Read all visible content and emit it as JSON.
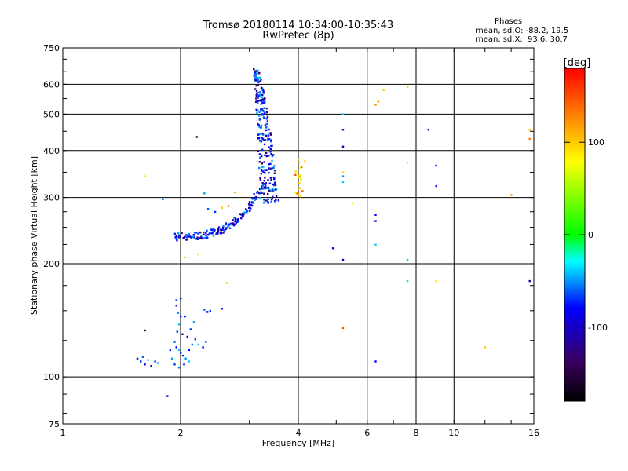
{
  "title_line1": "Tromsø 20180114 10:34:00-10:35:43",
  "title_line2": "RwPretec (8p)",
  "phase_header": "Phases",
  "phase_line1": "mean, sd,O: -88.2, 19.5",
  "phase_line2": "mean, sd,X:  93.6, 30.7",
  "chart_data": {
    "type": "scatter",
    "xlabel": "Frequency [MHz]",
    "ylabel": "Stationary phase Virtual Height [km]",
    "x_scale": "log",
    "y_scale": "log",
    "xlim": [
      1,
      16
    ],
    "ylim": [
      75,
      750
    ],
    "x_ticks": [
      1,
      2,
      4,
      6,
      8,
      10,
      16
    ],
    "y_ticks": [
      75,
      100,
      200,
      300,
      400,
      500,
      600,
      750
    ],
    "grid": true,
    "colorbar": {
      "label": "[deg]",
      "range": [
        -180,
        180
      ],
      "ticks": [
        100,
        0,
        -100
      ],
      "colors": [
        "#000000",
        "#3a0060",
        "#0000ff",
        "#00ffff",
        "#00ff00",
        "#ffff00",
        "#ff0000"
      ]
    },
    "points": [
      [
        1.55,
        112,
        -100
      ],
      [
        1.58,
        110,
        -95
      ],
      [
        1.6,
        113,
        -80
      ],
      [
        1.62,
        108,
        -110
      ],
      [
        1.65,
        111,
        -60
      ],
      [
        1.68,
        107,
        -100
      ],
      [
        1.72,
        110,
        -90
      ],
      [
        1.75,
        109,
        -70
      ],
      [
        1.62,
        133,
        -150
      ],
      [
        1.62,
        342,
        90
      ],
      [
        1.85,
        89,
        -110
      ],
      [
        1.8,
        297,
        -80
      ],
      [
        1.95,
        155,
        -100
      ],
      [
        1.95,
        160,
        -90
      ],
      [
        2.0,
        162,
        -110
      ],
      [
        1.97,
        148,
        -70
      ],
      [
        2.0,
        145,
        -100
      ],
      [
        1.98,
        138,
        -60
      ],
      [
        1.96,
        132,
        -90
      ],
      [
        2.02,
        130,
        -120
      ],
      [
        1.93,
        124,
        -80
      ],
      [
        1.95,
        120,
        -100
      ],
      [
        1.98,
        118,
        -60
      ],
      [
        2.0,
        116,
        -90
      ],
      [
        2.03,
        114,
        -110
      ],
      [
        2.06,
        112,
        -70
      ],
      [
        2.1,
        118,
        -100
      ],
      [
        2.14,
        122,
        -80
      ],
      [
        2.08,
        128,
        -110
      ],
      [
        2.12,
        134,
        -90
      ],
      [
        2.16,
        140,
        -70
      ],
      [
        2.05,
        145,
        -100
      ],
      [
        2.18,
        126,
        -90
      ],
      [
        2.22,
        122,
        -60
      ],
      [
        2.28,
        120,
        -100
      ],
      [
        2.32,
        124,
        -80
      ],
      [
        1.9,
        112,
        -70
      ],
      [
        1.93,
        108,
        -90
      ],
      [
        1.98,
        106,
        -80
      ],
      [
        2.04,
        108,
        -100
      ],
      [
        2.1,
        110,
        -60
      ],
      [
        1.88,
        118,
        -90
      ],
      [
        2.3,
        151,
        -80
      ],
      [
        2.34,
        149,
        -100
      ],
      [
        2.38,
        150,
        -90
      ],
      [
        2.55,
        152,
        -100
      ],
      [
        2.22,
        212,
        100
      ],
      [
        2.05,
        208,
        95
      ],
      [
        2.62,
        178,
        95
      ],
      [
        2.2,
        435,
        -140
      ],
      [
        2.3,
        308,
        -70
      ],
      [
        2.35,
        280,
        -80
      ],
      [
        2.45,
        275,
        -90
      ],
      [
        2.55,
        282,
        100
      ],
      [
        2.65,
        285,
        130
      ],
      [
        2.75,
        310,
        110
      ],
      [
        5.2,
        500,
        -60
      ],
      [
        5.2,
        455,
        -100
      ],
      [
        5.2,
        410,
        -120
      ],
      [
        5.2,
        350,
        100
      ],
      [
        5.2,
        342,
        -70
      ],
      [
        5.2,
        330,
        -60
      ],
      [
        5.2,
        205,
        -110
      ],
      [
        5.2,
        135,
        150
      ],
      [
        5.5,
        290,
        90
      ],
      [
        4.9,
        220,
        -100
      ],
      [
        6.3,
        270,
        -100
      ],
      [
        6.3,
        260,
        -110
      ],
      [
        6.3,
        225,
        -60
      ],
      [
        6.3,
        110,
        -100
      ],
      [
        6.3,
        530,
        130
      ],
      [
        6.4,
        540,
        120
      ],
      [
        6.6,
        580,
        100
      ],
      [
        7.6,
        590,
        100
      ],
      [
        7.6,
        372,
        100
      ],
      [
        7.6,
        205,
        -60
      ],
      [
        7.6,
        180,
        -60
      ],
      [
        8.6,
        455,
        -110
      ],
      [
        9.0,
        365,
        -100
      ],
      [
        9.0,
        322,
        -100
      ],
      [
        9.0,
        180,
        95
      ],
      [
        12.0,
        120,
        100
      ],
      [
        14.0,
        305,
        120
      ],
      [
        15.6,
        455,
        100
      ],
      [
        15.6,
        430,
        130
      ],
      [
        15.6,
        180,
        -120
      ]
    ]
  }
}
